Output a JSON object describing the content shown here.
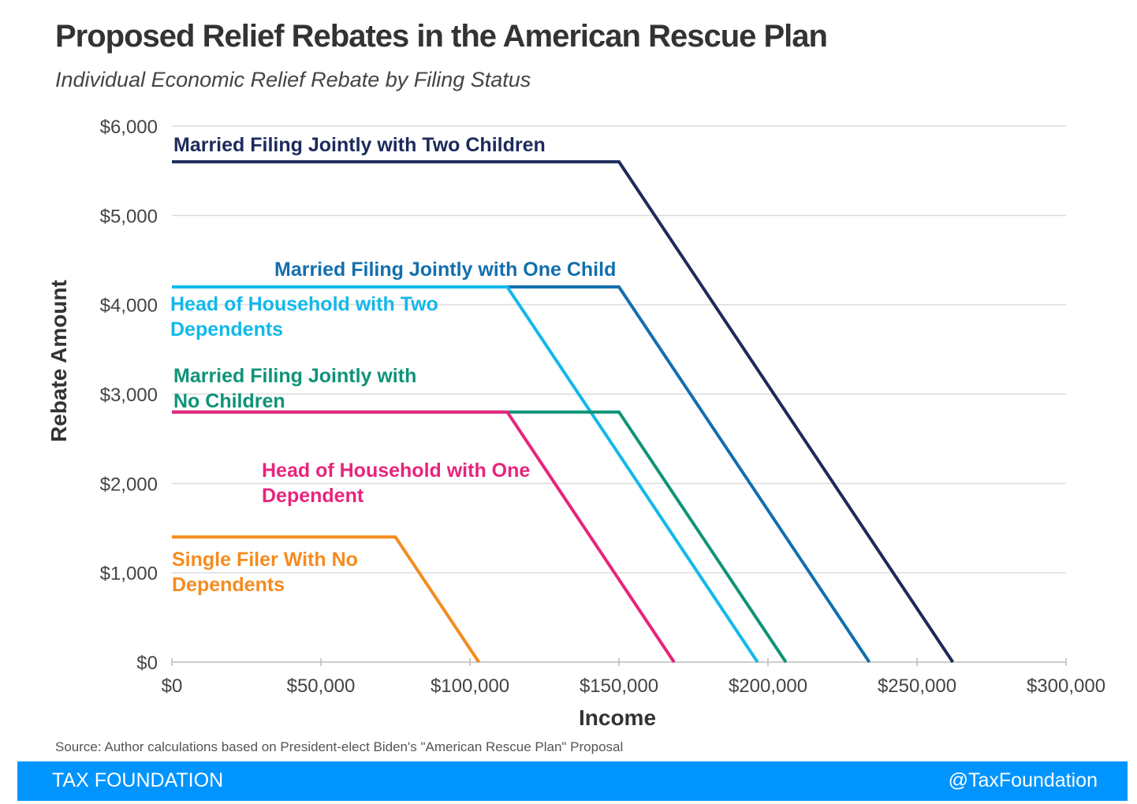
{
  "header": {
    "title": "Proposed Relief Rebates in the American Rescue Plan",
    "subtitle": "Individual Economic Relief Rebate by Filing Status"
  },
  "chart_data": {
    "type": "line",
    "title": "Proposed Relief Rebates in the American Rescue Plan",
    "subtitle": "Individual Economic Relief Rebate by Filing Status",
    "xlabel": "Income",
    "ylabel": "Rebate Amount",
    "xlim": [
      0,
      300000
    ],
    "ylim": [
      0,
      6000
    ],
    "x_ticks": [
      0,
      50000,
      100000,
      150000,
      200000,
      250000,
      300000
    ],
    "x_tick_labels": [
      "$0",
      "$50,000",
      "$100,000",
      "$150,000",
      "$200,000",
      "$250,000",
      "$300,000"
    ],
    "y_ticks": [
      0,
      1000,
      2000,
      3000,
      4000,
      5000,
      6000
    ],
    "y_tick_labels": [
      "$0",
      "$1,000",
      "$2,000",
      "$3,000",
      "$4,000",
      "$5,000",
      "$6,000"
    ],
    "grid": true,
    "series": [
      {
        "key": "mfj2",
        "name": "Married Filing Jointly with Two Children",
        "label_lines": [
          "Married Filing Jointly with Two Children"
        ],
        "color": "#1c2a5c",
        "x": [
          0,
          150000,
          262000
        ],
        "y": [
          5600,
          5600,
          0
        ]
      },
      {
        "key": "mfj1",
        "name": "Married Filing Jointly with One Child",
        "label_lines": [
          "Married Filing Jointly with One Child"
        ],
        "color": "#136fad",
        "x": [
          0,
          150000,
          234000
        ],
        "y": [
          4200,
          4200,
          0
        ]
      },
      {
        "key": "hoh2",
        "name": "Head of Household with Two Dependents",
        "label_lines": [
          "Head of Household with Two",
          "Dependents"
        ],
        "color": "#12b8eb",
        "x": [
          0,
          112500,
          196500
        ],
        "y": [
          4200,
          4200,
          0
        ]
      },
      {
        "key": "mfj0",
        "name": "Married Filing Jointly with No Children",
        "label_lines": [
          "Married Filing Jointly with",
          "No Children"
        ],
        "color": "#0f9378",
        "x": [
          0,
          150000,
          206000
        ],
        "y": [
          2800,
          2800,
          0
        ]
      },
      {
        "key": "hoh1",
        "name": "Head of Household with One Dependent",
        "label_lines": [
          "Head of Household with One",
          "Dependent"
        ],
        "color": "#e8247d",
        "x": [
          0,
          112500,
          168500
        ],
        "y": [
          2800,
          2800,
          0
        ]
      },
      {
        "key": "single",
        "name": "Single Filer With No Dependents",
        "label_lines": [
          "Single Filer With No",
          "Dependents"
        ],
        "color": "#f68b1f",
        "x": [
          0,
          75000,
          103000
        ],
        "y": [
          1400,
          1400,
          0
        ]
      }
    ]
  },
  "source": "Source: Author calculations based on President-elect Biden's \"American Rescue Plan\" Proposal",
  "footer": {
    "brand": "TAX FOUNDATION",
    "handle": "@TaxFoundation",
    "color": "#0094ff"
  }
}
